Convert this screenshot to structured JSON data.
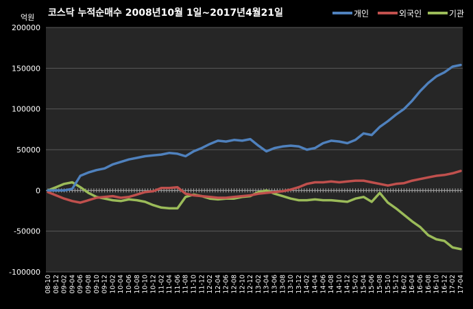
{
  "chart_data": {
    "type": "line",
    "title": "코스닥 누적순매수 2008년10월 1일~2017년4월21일",
    "ylabel": "억원",
    "ylim": [
      -100000,
      200000
    ],
    "yticks": [
      "200000",
      "150000",
      "100000",
      "50000",
      "0",
      "-50000",
      "-100000"
    ],
    "ytick_values": [
      200000,
      150000,
      100000,
      50000,
      0,
      -50000,
      -100000
    ],
    "x": [
      "08-10",
      "08-12",
      "09-02",
      "09-04",
      "09-06",
      "09-08",
      "09-10",
      "09-12",
      "10-02",
      "10-04",
      "10-06",
      "10-08",
      "10-10",
      "10-12",
      "11-02",
      "11-04",
      "11-06",
      "11-08",
      "11-10",
      "11-12",
      "12-02",
      "12-04",
      "12-06",
      "12-08",
      "12-10",
      "12-12",
      "13-02",
      "13-04",
      "13-06",
      "13-08",
      "13-10",
      "13-12",
      "14-02",
      "14-04",
      "14-06",
      "14-08",
      "14-10",
      "14-12",
      "15-02",
      "15-04",
      "15-06",
      "15-08",
      "15-10",
      "15-12",
      "16-02",
      "16-04",
      "16-06",
      "16-08",
      "16-10",
      "16-12",
      "17-02",
      "17-04"
    ],
    "grid": true,
    "legend_position": "top-right",
    "series": [
      {
        "name": "개인",
        "color": "#4f81bd",
        "values": [
          0,
          0,
          0,
          2000,
          18000,
          22000,
          25000,
          27000,
          32000,
          35000,
          38000,
          40000,
          42000,
          43000,
          44000,
          46000,
          45000,
          42000,
          48000,
          52000,
          57000,
          61000,
          60000,
          62000,
          61000,
          63000,
          55000,
          48000,
          52000,
          54000,
          55000,
          54000,
          50000,
          52000,
          58000,
          61000,
          60000,
          58000,
          62000,
          70000,
          68000,
          78000,
          85000,
          93000,
          100000,
          110000,
          122000,
          132000,
          140000,
          145000,
          152000,
          154000
        ]
      },
      {
        "name": "외국인",
        "color": "#c0504d",
        "values": [
          -2000,
          -6000,
          -10000,
          -13000,
          -15000,
          -12000,
          -9000,
          -8000,
          -7000,
          -9000,
          -8000,
          -5000,
          -2000,
          -1000,
          3000,
          3000,
          4000,
          -4000,
          -6000,
          -7000,
          -8000,
          -9000,
          -9000,
          -8000,
          -7000,
          -6000,
          -4000,
          -3000,
          -2000,
          -1000,
          1000,
          4000,
          8000,
          10000,
          10000,
          11000,
          10000,
          11000,
          12000,
          12000,
          10000,
          8000,
          6000,
          8000,
          9000,
          12000,
          14000,
          16000,
          18000,
          19000,
          21000,
          24000
        ]
      },
      {
        "name": "기관",
        "color": "#9bbb59",
        "values": [
          0,
          4000,
          8000,
          10000,
          4000,
          -3000,
          -8000,
          -10000,
          -12000,
          -13000,
          -11000,
          -12000,
          -14000,
          -18000,
          -21000,
          -22000,
          -22000,
          -8000,
          -5000,
          -7000,
          -10000,
          -11000,
          -10000,
          -10000,
          -8000,
          -7000,
          -2000,
          0,
          -4000,
          -7000,
          -10000,
          -12000,
          -12000,
          -11000,
          -12000,
          -12000,
          -13000,
          -14000,
          -10000,
          -8000,
          -14000,
          -3000,
          -15000,
          -22000,
          -30000,
          -38000,
          -45000,
          -55000,
          -60000,
          -62000,
          -70000,
          -72000
        ]
      }
    ]
  }
}
